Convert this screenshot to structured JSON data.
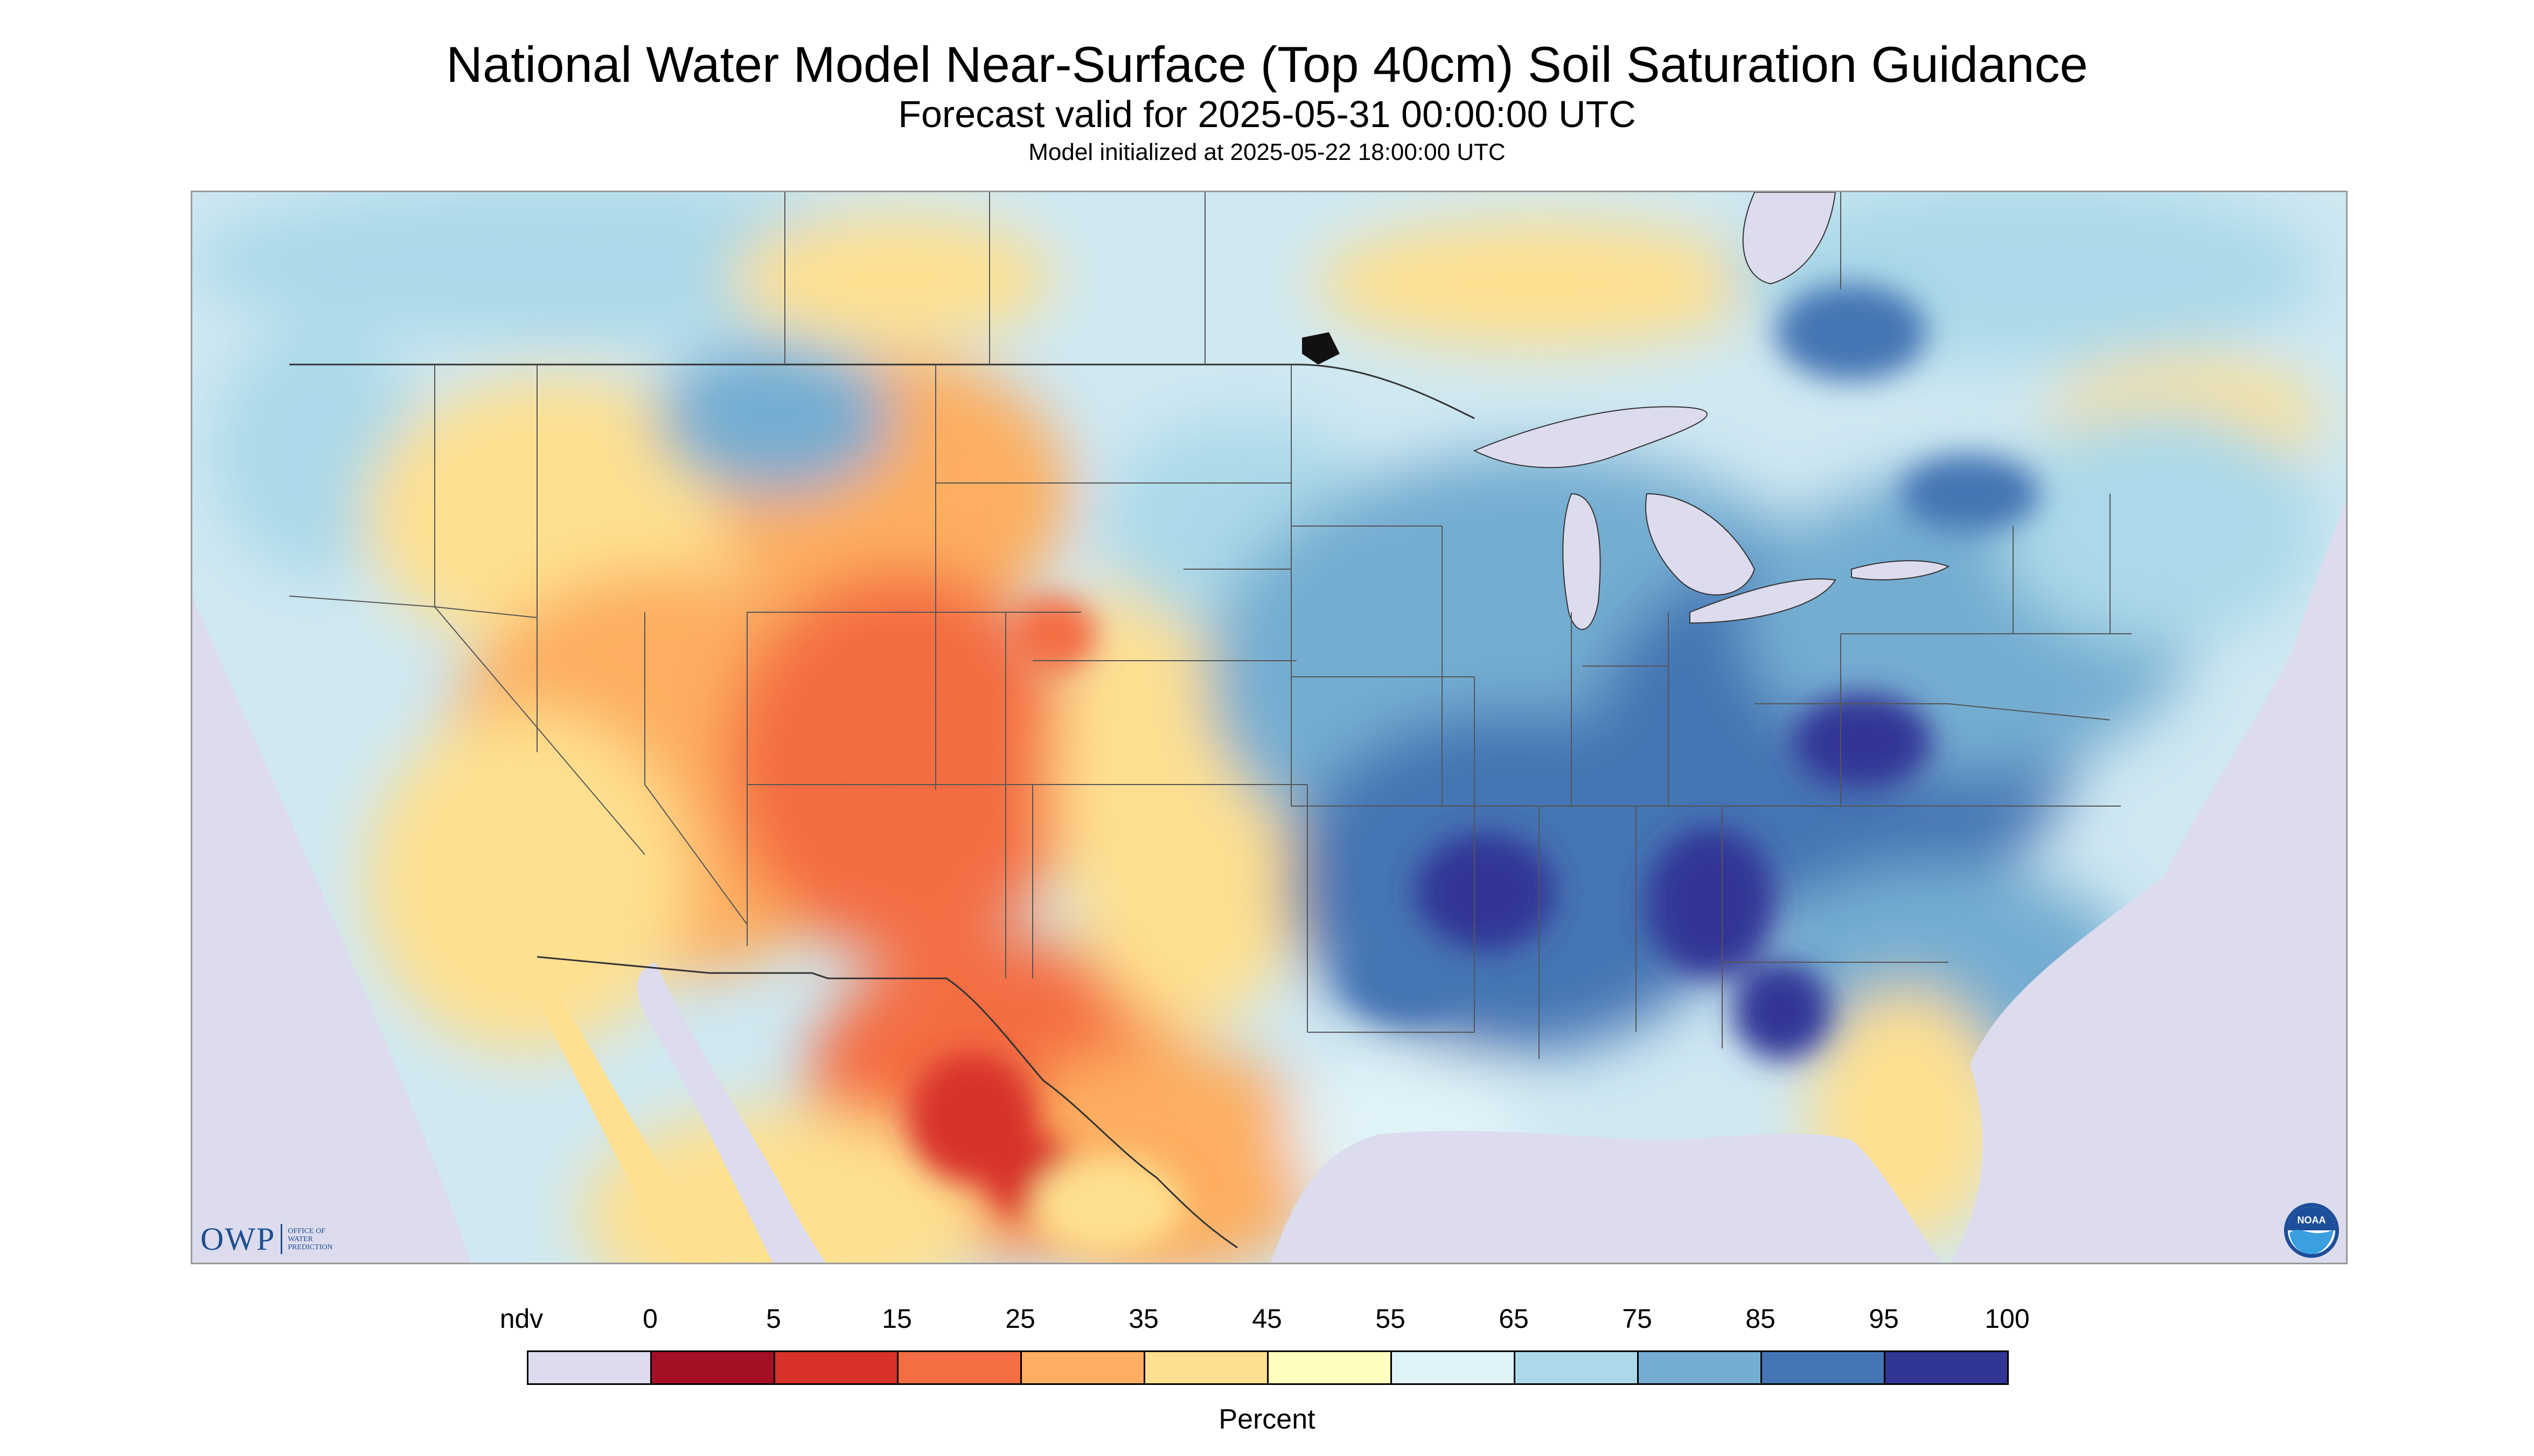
{
  "title": "National Water Model Near-Surface (Top 40cm) Soil Saturation Guidance",
  "subtitle": "Forecast valid for 2025-05-31 00:00:00 UTC",
  "init_line": "Model initialized at 2025-05-22 18:00:00 UTC",
  "logos": {
    "owp_letters": "OWP",
    "owp_small": [
      "OFFICE OF",
      "WATER",
      "PREDICTION"
    ],
    "noaa": "NOAA"
  },
  "legend": {
    "label": "Percent",
    "ticks": [
      "ndv",
      "0",
      "5",
      "15",
      "25",
      "35",
      "45",
      "55",
      "65",
      "75",
      "85",
      "95",
      "100"
    ],
    "colors": [
      "#dcdcee",
      "#a50f26",
      "#d7312a",
      "#f46d43",
      "#fdae61",
      "#fee090",
      "#ffffbf",
      "#e0f3f8",
      "#abd9e9",
      "#74add1",
      "#4575b4",
      "#313695"
    ]
  },
  "map_colors": {
    "ndv": "#dcdcee",
    "water": "#dcdcee",
    "border": "#333333"
  }
}
